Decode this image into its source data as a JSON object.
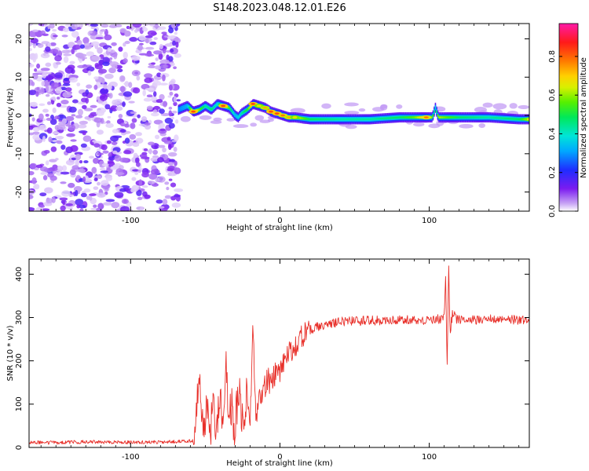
{
  "title": "S148.2023.048.12.01.E26",
  "chart_data": [
    {
      "type": "heatmap",
      "panel": "spectrogram",
      "xlabel": "Height of straight line (km)",
      "ylabel": "Frequency (Hz)",
      "xlim": [
        -168,
        167
      ],
      "ylim": [
        -25,
        24
      ],
      "x_ticks": [
        -100,
        0,
        100
      ],
      "y_ticks": [
        -20,
        -10,
        0,
        10,
        20
      ],
      "colorbar": {
        "label": "Normalized spectral amplitude",
        "range": [
          0.0,
          0.97
        ],
        "ticks": [
          0.0,
          0.2,
          0.4,
          0.6,
          0.8
        ],
        "colormap": "rainbow (violet-blue-cyan-green-yellow-orange-red-magenta)"
      },
      "noise_region_x": [
        -168,
        -68
      ],
      "ridge": {
        "x": [
          -68,
          -62,
          -58,
          -54,
          -50,
          -46,
          -42,
          -38,
          -34,
          -30,
          -28,
          -26,
          -22,
          -18,
          -14,
          -10,
          -6,
          -2,
          2,
          6,
          10,
          20,
          40,
          60,
          80,
          90,
          98,
          102,
          104,
          106,
          110,
          120,
          140,
          160,
          167
        ],
        "frequency": [
          1.5,
          2.5,
          1.0,
          1.5,
          2.5,
          1.5,
          3.0,
          2.5,
          2.0,
          0.0,
          -0.5,
          0.5,
          1.5,
          3.0,
          2.5,
          2.0,
          1.0,
          0.5,
          0.0,
          -0.5,
          -0.5,
          -1.0,
          -1.0,
          -1.0,
          -0.5,
          -0.5,
          -0.5,
          -0.5,
          2.0,
          -0.5,
          -0.5,
          -0.5,
          -0.5,
          -1.0,
          -1.0
        ],
        "amplitude": [
          0.3,
          0.35,
          0.85,
          0.6,
          0.45,
          0.5,
          0.4,
          0.85,
          0.55,
          0.35,
          0.4,
          0.45,
          0.55,
          0.85,
          0.7,
          0.75,
          0.85,
          0.85,
          0.8,
          0.75,
          0.7,
          0.5,
          0.45,
          0.45,
          0.5,
          0.6,
          0.8,
          0.6,
          0.4,
          0.65,
          0.6,
          0.5,
          0.45,
          0.5,
          0.7
        ]
      }
    },
    {
      "type": "line",
      "panel": "snr",
      "xlabel": "Height of straight line (km)",
      "ylabel": "SNR (10 * v/v)",
      "xlim": [
        -168,
        167
      ],
      "ylim": [
        0,
        435
      ],
      "x_ticks": [
        -100,
        0,
        100
      ],
      "y_ticks": [
        0,
        100,
        200,
        300,
        400
      ],
      "series": [
        {
          "color": "#e8302a",
          "x": [
            -168,
            -150,
            -130,
            -110,
            -90,
            -70,
            -58,
            -56,
            -54,
            -52,
            -50,
            -48,
            -46,
            -44,
            -42,
            -40,
            -38,
            -36,
            -34,
            -32,
            -30,
            -28,
            -26,
            -24,
            -22,
            -20,
            -18,
            -16,
            -14,
            -12,
            -10,
            -8,
            -6,
            -4,
            -2,
            0,
            2,
            4,
            6,
            8,
            10,
            12,
            14,
            16,
            18,
            20,
            24,
            28,
            32,
            36,
            40,
            46,
            52,
            60,
            70,
            80,
            90,
            100,
            106,
            108,
            110,
            111,
            112,
            113,
            114,
            115,
            116,
            118,
            122,
            130,
            140,
            150,
            160,
            167
          ],
          "y": [
            12,
            11,
            13,
            12,
            12,
            13,
            15,
            70,
            150,
            80,
            60,
            85,
            55,
            90,
            50,
            120,
            40,
            180,
            70,
            100,
            25,
            150,
            80,
            90,
            120,
            60,
            280,
            60,
            130,
            110,
            140,
            160,
            140,
            170,
            165,
            175,
            190,
            205,
            215,
            225,
            235,
            245,
            255,
            260,
            265,
            270,
            278,
            282,
            286,
            288,
            290,
            292,
            292,
            293,
            293,
            294,
            294,
            295,
            296,
            298,
            300,
            410,
            180,
            430,
            260,
            300,
            310,
            296,
            295,
            295,
            296,
            294,
            295,
            296
          ]
        }
      ]
    }
  ]
}
